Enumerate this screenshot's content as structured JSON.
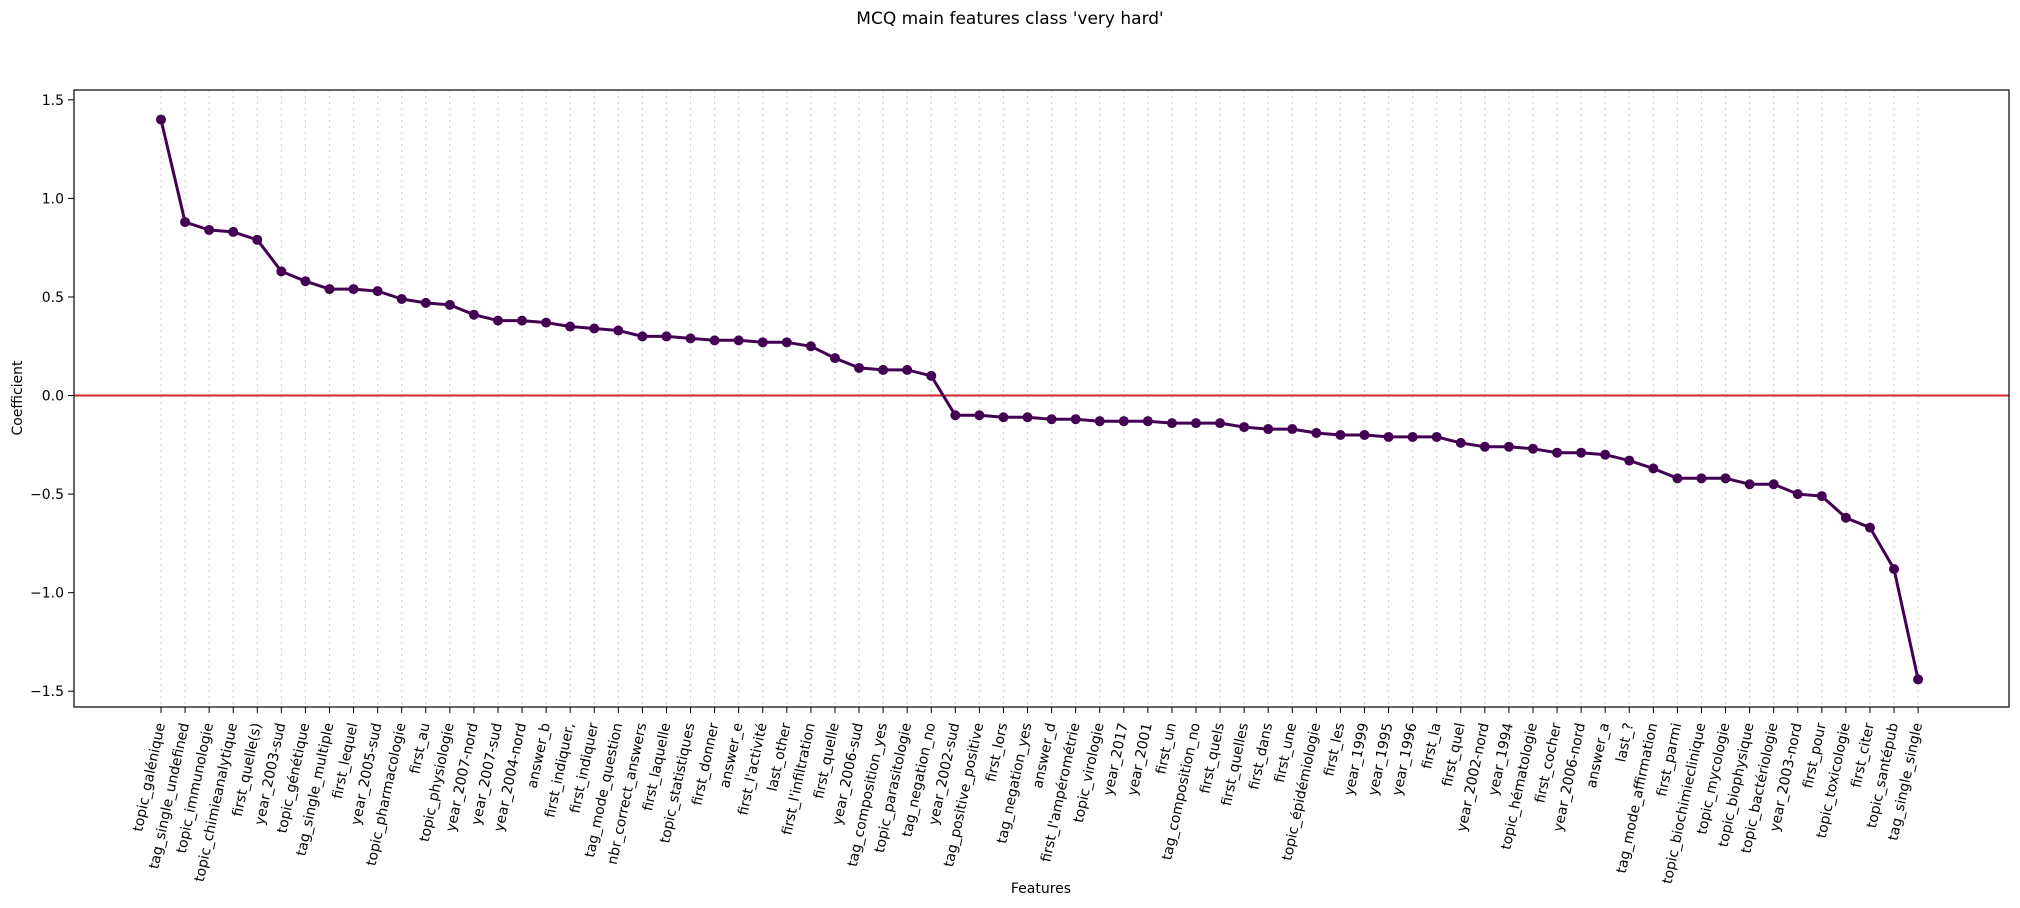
{
  "chart_data": {
    "type": "line",
    "title": "MCQ main features class 'very hard'",
    "xlabel": "Features",
    "ylabel": "Coefficient",
    "ylim": [
      -1.58,
      1.55
    ],
    "yticks": [
      -1.5,
      -1.0,
      -0.5,
      0.0,
      0.5,
      1.0,
      1.5
    ],
    "ytick_labels": [
      "−1.5",
      "−1.0",
      "−0.5",
      "0.0",
      "0.5",
      "1.0",
      "1.5"
    ],
    "grid": "vertical dotted",
    "reference_line": {
      "y": 0.0,
      "color": "#d62728"
    },
    "series_color": "#440154",
    "categories": [
      "topic_galénique",
      "tag_single_undefined",
      "topic_immunologie",
      "topic_chimieanalytique",
      "first_quelle(s)",
      "year_2003-sud",
      "topic_génétique",
      "tag_single_multiple",
      "first_lequel",
      "year_2005-sud",
      "topic_pharmacologie",
      "first_au",
      "topic_physiologie",
      "year_2007-nord",
      "year_2007-sud",
      "year_2004-nord",
      "answer_b",
      "first_indiquer,",
      "first_indiquer",
      "tag_mode_question",
      "nbr_correct_answers",
      "first_laquelle",
      "topic_statistiques",
      "first_donner",
      "answer_e",
      "first_l'activité",
      "last_other",
      "first_l'infiltration",
      "first_quelle",
      "year_2006-sud",
      "tag_composition_yes",
      "topic_parasitologie",
      "tag_negation_no",
      "year_2002-sud",
      "tag_positive_positive",
      "first_lors",
      "tag_negation_yes",
      "answer_d",
      "first_l'ampérométrie",
      "topic_virologie",
      "year_2017",
      "year_2001",
      "first_un",
      "tag_composition_no",
      "first_quels",
      "first_quelles",
      "first_dans",
      "first_une",
      "topic_épidémiologie",
      "first_les",
      "year_1999",
      "year_1995",
      "year_1996",
      "first_la",
      "first_quel",
      "year_2002-nord",
      "year_1994",
      "topic_hématologie",
      "first_cocher",
      "year_2006-nord",
      "answer_a",
      "last_?",
      "tag_mode_affirmation",
      "first_parmi",
      "topic_biochimieclinique",
      "topic_mycologie",
      "topic_biophysique",
      "topic_bactériologie",
      "year_2003-nord",
      "first_pour",
      "topic_toxicologie",
      "first_citer",
      "topic_santépub",
      "tag_single_single"
    ],
    "values": [
      1.4,
      0.88,
      0.84,
      0.83,
      0.79,
      0.63,
      0.58,
      0.54,
      0.54,
      0.53,
      0.49,
      0.47,
      0.46,
      0.41,
      0.38,
      0.38,
      0.37,
      0.35,
      0.34,
      0.33,
      0.3,
      0.3,
      0.29,
      0.28,
      0.28,
      0.27,
      0.27,
      0.25,
      0.19,
      0.14,
      0.13,
      0.13,
      0.1,
      -0.1,
      -0.1,
      -0.11,
      -0.11,
      -0.12,
      -0.12,
      -0.13,
      -0.13,
      -0.13,
      -0.14,
      -0.14,
      -0.14,
      -0.16,
      -0.17,
      -0.17,
      -0.19,
      -0.2,
      -0.2,
      -0.21,
      -0.21,
      -0.21,
      -0.24,
      -0.26,
      -0.26,
      -0.27,
      -0.29,
      -0.29,
      -0.3,
      -0.33,
      -0.37,
      -0.42,
      -0.42,
      -0.42,
      -0.45,
      -0.45,
      -0.5,
      -0.51,
      -0.62,
      -0.67,
      -0.88,
      -1.44
    ]
  }
}
